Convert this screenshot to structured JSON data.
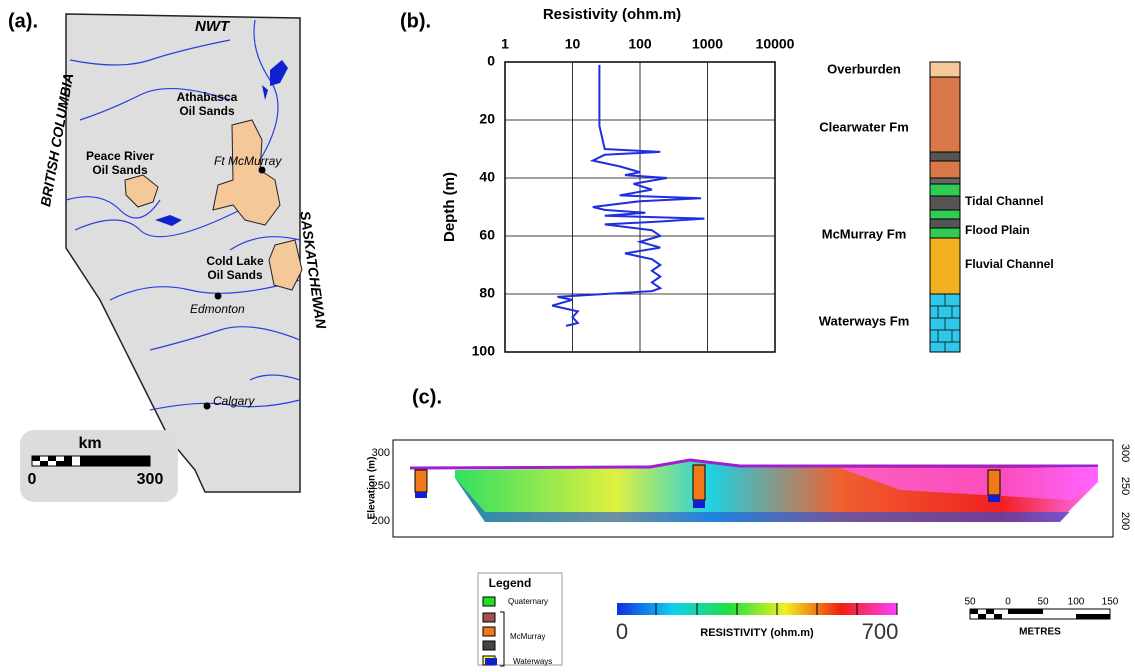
{
  "map": {
    "panel": "(a).",
    "nwt": "NWT",
    "bc": "BRITISH COLUMBIA",
    "sask": "SASKATCHEWAN",
    "athabasca": [
      "Athabasca",
      "Oil Sands"
    ],
    "peace": [
      "Peace River",
      "Oil Sands"
    ],
    "cold": [
      "Cold Lake",
      "Oil Sands"
    ],
    "ftmc": "Ft McMurray",
    "edmonton": "Edmonton",
    "calgary": "Calgary",
    "scale_unit": "km",
    "scale_min": "0",
    "scale_max": "300"
  },
  "chart_data": {
    "type": "line",
    "panel": "(b).",
    "x_label": "Resistivity (ohm.m)",
    "y_label": "Depth (m)",
    "color": "#1f2ee0",
    "log_x": true,
    "invert_y": true,
    "grid": true,
    "xlim": [
      1,
      10000
    ],
    "xticks": [
      1,
      10,
      100,
      1000,
      10000
    ],
    "ylim": [
      0,
      100
    ],
    "yticks": [
      0,
      20,
      40,
      60,
      80,
      100
    ],
    "x": [
      25,
      25,
      25,
      25,
      30,
      200,
      30,
      20,
      50,
      100,
      60,
      250,
      80,
      150,
      50,
      800,
      100,
      20,
      30,
      120,
      30,
      900,
      200,
      30,
      150,
      200,
      100,
      200,
      60,
      150,
      200,
      150,
      200,
      150,
      200,
      150,
      30,
      6,
      10,
      5,
      12,
      10,
      12,
      8
    ],
    "values": [
      1,
      10,
      20,
      22,
      30,
      31,
      32,
      34,
      36,
      38,
      39,
      40,
      42,
      44,
      46,
      47,
      48,
      50,
      51,
      52,
      53,
      54,
      55,
      56,
      58,
      60,
      62,
      64,
      66,
      68,
      70,
      72,
      74,
      76,
      78,
      79,
      80,
      81,
      82,
      84,
      86,
      88,
      90,
      91
    ]
  },
  "lithology": {
    "overburden": "Overburden",
    "clearwater": "Clearwater Fm",
    "tidal": "Tidal Channel",
    "mcmurray": "McMurray Fm",
    "flood": "Flood Plain",
    "fluvial": "Fluvial Channel",
    "waterways": "Waterways Fm"
  },
  "section": {
    "panel": "(c).",
    "y_label": "Elevation (m)",
    "yticks": [
      "300",
      "250",
      "200"
    ],
    "colorbar": {
      "min": "0",
      "label": "RESISTIVITY (ohm.m)",
      "max": "700"
    },
    "scale": {
      "ticks": [
        "50",
        "0",
        "50",
        "100",
        "150"
      ],
      "unit": "METRES"
    },
    "legend": {
      "title": "Legend",
      "quaternary": "Quaternary",
      "mcmurray": "McMurray",
      "waterways": "Waterways"
    }
  }
}
